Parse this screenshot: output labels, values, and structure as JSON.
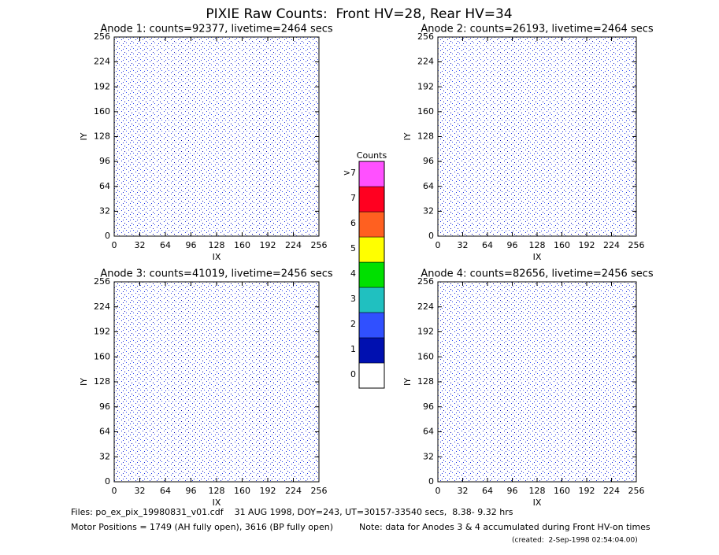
{
  "title": "PIXIE Raw Counts:  Front HV=28, Rear HV=34",
  "chart_data": [
    {
      "type": "heatmap",
      "title": "Anode 1: counts=92377, livetime=2464 secs",
      "xlabel": "IX",
      "ylabel": "IY",
      "xlim": [
        0,
        256
      ],
      "ylim": [
        0,
        256
      ],
      "xticks": [
        0,
        32,
        64,
        96,
        128,
        160,
        192,
        224,
        256
      ],
      "yticks": [
        0,
        32,
        64,
        96,
        128,
        160,
        192,
        224,
        256
      ]
    },
    {
      "type": "heatmap",
      "title": "Anode 2: counts=26193, livetime=2464 secs",
      "xlabel": "IX",
      "ylabel": "IY",
      "xlim": [
        0,
        256
      ],
      "ylim": [
        0,
        256
      ],
      "xticks": [
        0,
        32,
        64,
        96,
        128,
        160,
        192,
        224,
        256
      ],
      "yticks": [
        0,
        32,
        64,
        96,
        128,
        160,
        192,
        224,
        256
      ]
    },
    {
      "type": "heatmap",
      "title": "Anode 3: counts=41019, livetime=2456 secs",
      "xlabel": "IX",
      "ylabel": "IY",
      "xlim": [
        0,
        256
      ],
      "ylim": [
        0,
        256
      ],
      "xticks": [
        0,
        32,
        64,
        96,
        128,
        160,
        192,
        224,
        256
      ],
      "yticks": [
        0,
        32,
        64,
        96,
        128,
        160,
        192,
        224,
        256
      ]
    },
    {
      "type": "heatmap",
      "title": "Anode 4: counts=82656, livetime=2456 secs",
      "xlabel": "IX",
      "ylabel": "IY",
      "xlim": [
        0,
        256
      ],
      "ylim": [
        0,
        256
      ],
      "xticks": [
        0,
        32,
        64,
        96,
        128,
        160,
        192,
        224,
        256
      ],
      "yticks": [
        0,
        32,
        64,
        96,
        128,
        160,
        192,
        224,
        256
      ]
    }
  ],
  "colorbar": {
    "title": "Counts",
    "labels": [
      "0",
      "1",
      "2",
      "3",
      "4",
      "5",
      "6",
      "7",
      ">7"
    ],
    "colors": [
      "#ffffff",
      "#0010b0",
      "#3050ff",
      "#20c0c0",
      "#00e000",
      "#ffff00",
      "#ff6020",
      "#ff0020",
      "#ff50ff"
    ]
  },
  "footer": {
    "files": "Files: po_ex_pix_19980831_v01.cdf    31 AUG 1998, DOY=243, UT=30157-33540 secs,  8.38- 9.32 hrs",
    "motor": "Motor Positions = 1749 (AH fully open), 3616 (BP fully open)",
    "note": "Note: data for Anodes 3 & 4 accumulated during Front HV-on times",
    "created": "(created:  2-Sep-1998 02:54:04.00)"
  }
}
